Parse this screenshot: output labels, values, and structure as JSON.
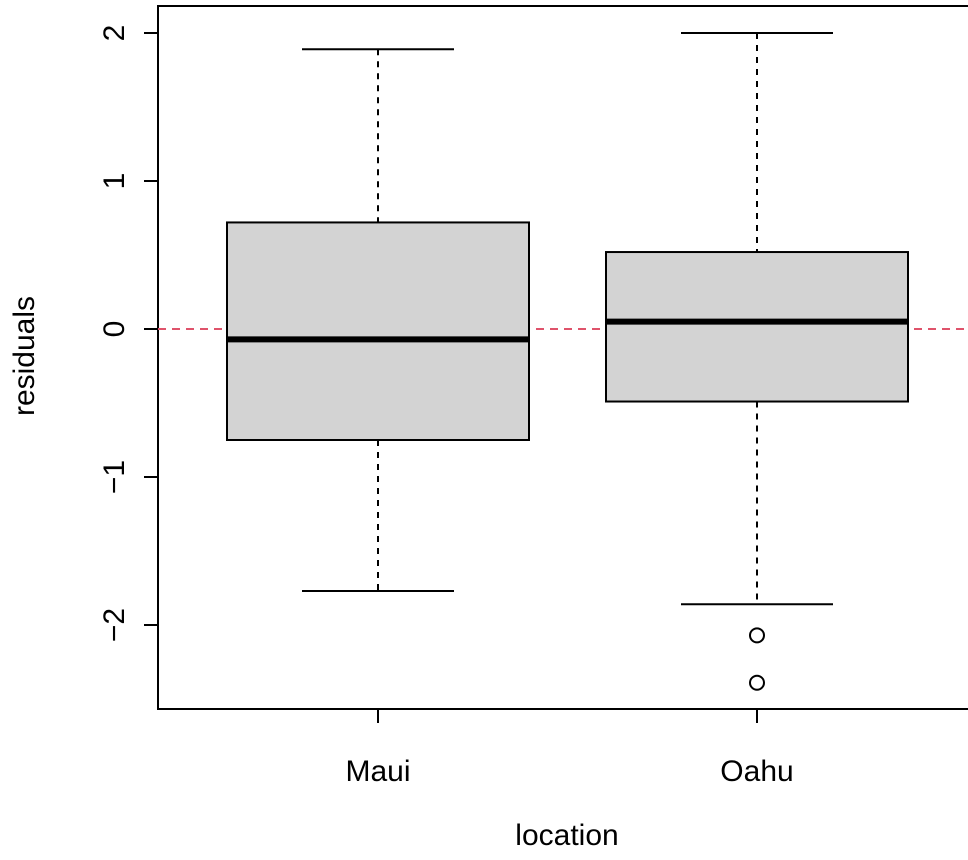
{
  "chart_data": {
    "type": "boxplot",
    "title": "",
    "xlabel": "location",
    "ylabel": "residuals",
    "ylim": [
      -2.55,
      2.2
    ],
    "yticks": [
      "2",
      "1",
      "0",
      "-1",
      "-2"
    ],
    "ytick_values": [
      2,
      1,
      0,
      -1,
      -2
    ],
    "reference_line": {
      "y": 0,
      "style": "dashed",
      "color": "#df536b"
    },
    "box_fill": "#d3d3d3",
    "categories": [
      "Maui",
      "Oahu"
    ],
    "boxes": [
      {
        "name": "Maui",
        "whisker_low": -1.77,
        "q1": -0.75,
        "median": -0.07,
        "q3": 0.72,
        "whisker_high": 1.89,
        "outliers": []
      },
      {
        "name": "Oahu",
        "whisker_low": -1.86,
        "q1": -0.49,
        "median": 0.05,
        "q3": 0.52,
        "whisker_high": 2.0,
        "outliers": [
          -2.07,
          -2.39
        ]
      }
    ]
  }
}
